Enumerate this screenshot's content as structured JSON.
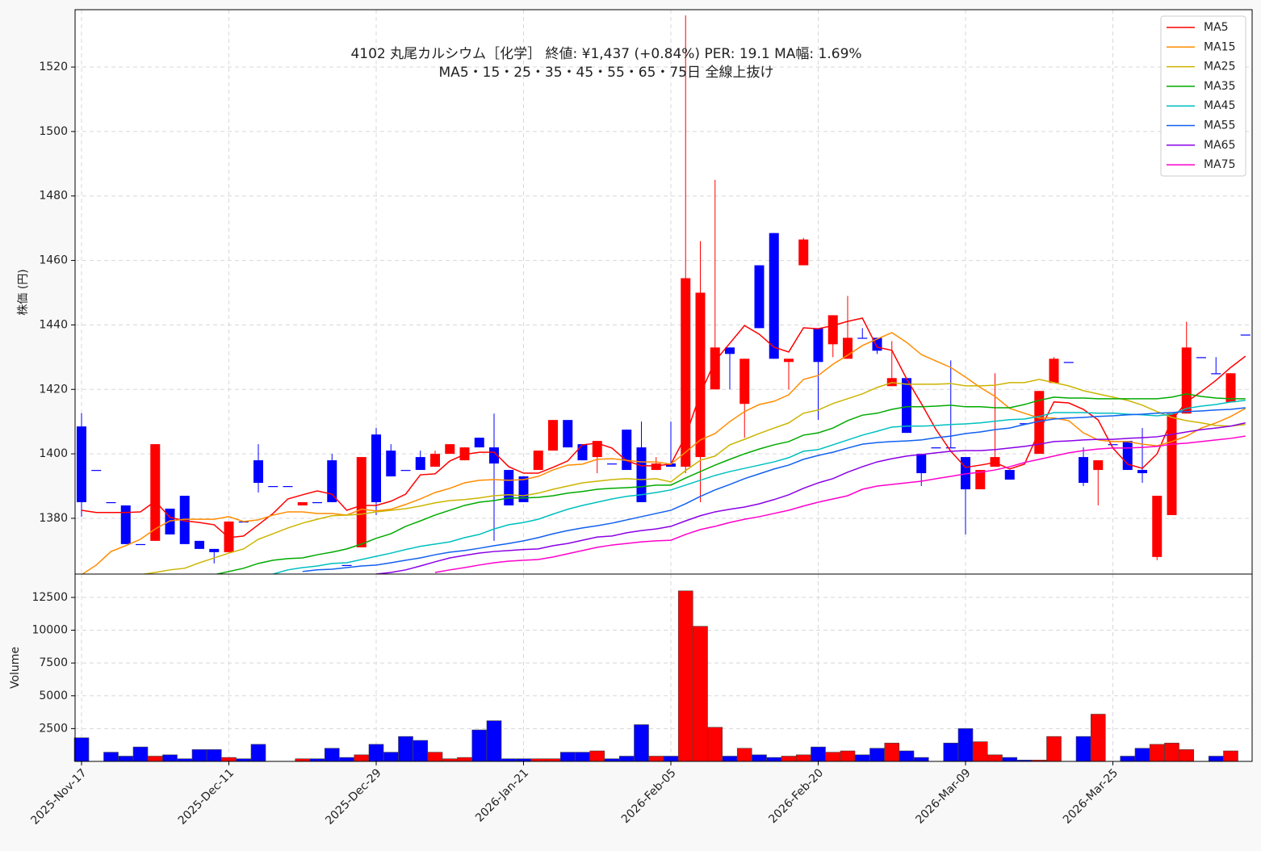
{
  "chart_data": {
    "type": "candlestick",
    "title": "4102  丸尾カルシウム［化学］ 終値: ¥1,437 (+0.84%)   PER: 19.1  MA幅: 1.69%",
    "subtitle": "MA5・15・25・35・45・55・65・75日 全線上抜け",
    "ylabel": "株価 (円)",
    "categories": [
      "2025-Nov-17",
      null,
      null,
      null,
      null,
      null,
      null,
      null,
      null,
      null,
      "2025-Dec-11",
      null,
      null,
      null,
      null,
      null,
      null,
      null,
      null,
      null,
      "2025-Dec-29",
      null,
      null,
      null,
      null,
      null,
      null,
      null,
      null,
      null,
      "2026-Jan-21",
      null,
      null,
      null,
      null,
      null,
      null,
      null,
      null,
      null,
      "2026-Feb-05",
      null,
      null,
      null,
      null,
      null,
      null,
      null,
      null,
      null,
      "2026-Feb-20",
      null,
      null,
      null,
      null,
      null,
      null,
      null,
      null,
      null,
      "2026-Mar-09",
      null,
      null,
      null,
      null,
      null,
      null,
      null,
      null,
      null,
      "2026-Mar-25",
      null,
      null,
      null,
      null,
      null,
      null,
      null,
      null,
      null
    ],
    "open": [
      1408.5,
      1395,
      1385,
      1384,
      1372,
      1373,
      1383,
      1387,
      1373,
      1370.5,
      1369.5,
      1379,
      1398,
      1390,
      1390,
      1384,
      1385,
      1398,
      1365.5,
      1371,
      1406,
      1401,
      1395,
      1399,
      1396,
      1400,
      1398,
      1405,
      1402,
      1395,
      1393,
      1395,
      1401,
      1410.5,
      1403,
      1399,
      1397,
      1407.5,
      1402,
      1395,
      1397,
      1396,
      1399,
      1420,
      1433,
      1415.5,
      1458.5,
      1468.5,
      1428.5,
      1458.5,
      1439,
      1434,
      1429.5,
      1436,
      1436,
      1421,
      1423.5,
      1400,
      1402,
      1402,
      1399,
      1389,
      1396,
      1395,
      1409.5,
      1400,
      1422,
      1428.5,
      1399,
      1395,
      1403,
      1404,
      1395,
      1368,
      1381,
      1412.5,
      1430,
      1425,
      1416,
      1437
    ],
    "high": [
      1412.6,
      1395,
      1385,
      1384,
      1372,
      1403,
      1383,
      1387,
      1373,
      1370.5,
      1379,
      1379,
      1403,
      1390,
      1390,
      1385,
      1385,
      1400,
      1365.5,
      1399,
      1408,
      1403,
      1395,
      1401,
      1401,
      1403,
      1402,
      1405,
      1412.5,
      1395,
      1393,
      1401,
      1410.5,
      1410.5,
      1403,
      1404,
      1397,
      1407.5,
      1410,
      1399,
      1410,
      1536,
      1466,
      1485,
      1433,
      1429.5,
      1458.5,
      1468.5,
      1429.5,
      1467,
      1439,
      1443,
      1449,
      1439,
      1436,
      1435,
      1423.5,
      1400,
      1402,
      1429,
      1399,
      1395,
      1425,
      1395,
      1409.5,
      1419.5,
      1430,
      1428.5,
      1402,
      1398,
      1403,
      1404,
      1408,
      1387,
      1412.5,
      1441,
      1430,
      1430,
      1425,
      1437
    ],
    "low": [
      1380.5,
      1395,
      1385,
      1372,
      1372,
      1373,
      1375,
      1372,
      1370.5,
      1366,
      1369.5,
      1379,
      1388,
      1390,
      1390,
      1384,
      1385,
      1385,
      1365.5,
      1371,
      1381,
      1393,
      1395,
      1395,
      1396,
      1400,
      1398,
      1402,
      1373,
      1384,
      1385,
      1395,
      1401,
      1402,
      1398,
      1394,
      1397,
      1395,
      1385,
      1395,
      1396,
      1394,
      1385,
      1420,
      1420,
      1405,
      1439,
      1429.5,
      1420,
      1458.5,
      1410.5,
      1430,
      1429.5,
      1436,
      1431,
      1421,
      1406.5,
      1390,
      1402,
      1402,
      1375,
      1389,
      1396,
      1392,
      1409.5,
      1400,
      1422,
      1428.5,
      1390,
      1384,
      1403,
      1395,
      1391,
      1367,
      1381,
      1412.5,
      1430,
      1425,
      1416,
      1437
    ],
    "close": [
      1385,
      1395,
      1385,
      1372,
      1372,
      1403,
      1375,
      1372,
      1370.5,
      1369.5,
      1379,
      1379,
      1391,
      1390,
      1390,
      1385,
      1385,
      1385,
      1365.5,
      1399,
      1385,
      1393,
      1395,
      1395,
      1400,
      1403,
      1402,
      1402,
      1397,
      1384,
      1385,
      1401,
      1410.5,
      1402,
      1398,
      1404,
      1397,
      1395,
      1385,
      1397,
      1396,
      1454.5,
      1450,
      1433,
      1431,
      1429.5,
      1439,
      1429.5,
      1429.5,
      1466.5,
      1428.5,
      1443,
      1436,
      1436,
      1432,
      1423.5,
      1406.5,
      1394,
      1402,
      1402,
      1389,
      1395,
      1399,
      1392,
      1409.5,
      1419.5,
      1429.5,
      1428.5,
      1391,
      1398,
      1403,
      1395,
      1394,
      1387,
      1412.5,
      1433,
      1430,
      1425,
      1425,
      1437
    ],
    "up_color": "#ff0000",
    "down_color": "#0000ff",
    "ylim": [
      1362.7,
      1537.8
    ],
    "yticks": [
      1380,
      1400,
      1420,
      1440,
      1460,
      1480,
      1500,
      1520
    ],
    "grid": true,
    "legend": "upper right",
    "series": [
      {
        "name": "MA5",
        "color": "#ff0000",
        "values": [
          1382.5,
          1381.8,
          1381.8,
          1381.8,
          1382,
          1385.3,
          1380.3,
          1379.2,
          1378.7,
          1378,
          1374,
          1374.5,
          1378,
          1381.5,
          1386,
          1387.3,
          1388.5,
          1387.5,
          1382.5,
          1384,
          1384,
          1385.3,
          1387.5,
          1393.5,
          1393.8,
          1397.8,
          1399.8,
          1400.5,
          1400.5,
          1396,
          1394,
          1394,
          1395.8,
          1397.8,
          1402.8,
          1403.3,
          1401.8,
          1397.8,
          1396.3,
          1396.3,
          1396.8,
          1405.5,
          1418.6,
          1428.8,
          1434.3,
          1439.8,
          1437.1,
          1433.1,
          1431.6,
          1439.1,
          1438.8,
          1439.8,
          1441.1,
          1442.1,
          1433.1,
          1432.1,
          1423.3,
          1415.6,
          1407.5,
          1400.8,
          1395.8,
          1396.5,
          1397.3,
          1395.3,
          1396.8,
          1407,
          1416.1,
          1415.8,
          1413.8,
          1410.5,
          1401.8,
          1396.8,
          1395.5,
          1400,
          1410.5,
          1416.1,
          1419.3,
          1422.8,
          1426.8,
          1430.3
        ]
      },
      {
        "name": "MA15",
        "color": "#ff8c00",
        "values": [
          1362.5,
          1365.5,
          1369.7,
          1371.5,
          1373.5,
          1376.7,
          1379.2,
          1379.7,
          1379.7,
          1379.7,
          1380.5,
          1379,
          1379.5,
          1381,
          1382,
          1382,
          1381.5,
          1381.5,
          1381,
          1382.8,
          1382.3,
          1382.8,
          1384.3,
          1386,
          1388,
          1389.3,
          1391,
          1391.8,
          1392,
          1391.8,
          1392,
          1393,
          1395,
          1396.5,
          1396.8,
          1398.3,
          1398.5,
          1398,
          1397.5,
          1397.5,
          1396.8,
          1400.5,
          1404.3,
          1406.3,
          1410,
          1413.1,
          1415.3,
          1416.3,
          1418.3,
          1423.1,
          1424.3,
          1427.8,
          1430.6,
          1433.6,
          1435.6,
          1437.6,
          1434.6,
          1430.8,
          1428.8,
          1426.8,
          1423.8,
          1420.6,
          1417.8,
          1414.1,
          1412.6,
          1411.1,
          1411.1,
          1410.3,
          1406.5,
          1404.3,
          1403.8,
          1403.8,
          1403,
          1402.5,
          1403.8,
          1405.5,
          1408,
          1409.6,
          1411.6,
          1414.1
        ]
      },
      {
        "name": "MA25",
        "color": "#ccb400",
        "values": [
          null,
          null,
          null,
          null,
          1362.5,
          1363.2,
          1364,
          1364.5,
          1366.2,
          1367.7,
          1369.2,
          1370.5,
          1373.5,
          1375.2,
          1377,
          1378.5,
          1379.7,
          1380.8,
          1381,
          1381.3,
          1382,
          1382.5,
          1383,
          1383.8,
          1384.8,
          1385.5,
          1385.8,
          1386.3,
          1387,
          1387.3,
          1387,
          1387.8,
          1389,
          1390,
          1391,
          1391.5,
          1392,
          1392.3,
          1392,
          1392.3,
          1391.3,
          1394.8,
          1398,
          1399.3,
          1402.8,
          1404.5,
          1406.3,
          1408,
          1409.6,
          1412.6,
          1413.6,
          1415.6,
          1417.1,
          1418.6,
          1420.6,
          1422.1,
          1421.6,
          1421.6,
          1421.6,
          1421.8,
          1421.1,
          1421.1,
          1421.3,
          1422.1,
          1422.1,
          1423.1,
          1422.1,
          1421.1,
          1419.6,
          1418.6,
          1417.6,
          1416.6,
          1415.1,
          1413.1,
          1411.3,
          1410.3,
          1409.6,
          1408.8,
          1408.6,
          1409.1
        ]
      },
      {
        "name": "MA35",
        "color": "#00aa00",
        "values": [
          null,
          null,
          null,
          null,
          null,
          null,
          null,
          null,
          null,
          1362.5,
          1363.5,
          1364.5,
          1366,
          1367,
          1367.5,
          1367.7,
          1368.7,
          1369.5,
          1370.5,
          1372,
          1373.8,
          1375.2,
          1377.5,
          1379.2,
          1381,
          1382.5,
          1384,
          1385,
          1385.5,
          1386.3,
          1386.3,
          1386.5,
          1387,
          1387.8,
          1388.3,
          1389,
          1389.3,
          1389.5,
          1389.8,
          1390.3,
          1390.3,
          1392.5,
          1394.5,
          1396.5,
          1398.3,
          1400,
          1401.5,
          1402.8,
          1403.8,
          1405.8,
          1406.5,
          1408,
          1410.3,
          1412,
          1412.6,
          1413.8,
          1414.6,
          1414.6,
          1414.8,
          1415.1,
          1414.6,
          1414.6,
          1414.3,
          1414.3,
          1415.3,
          1416.6,
          1417.6,
          1417.3,
          1417.3,
          1417.1,
          1417.1,
          1417.1,
          1417.1,
          1417.1,
          1417.6,
          1418.6,
          1417.8,
          1417.3,
          1417.1,
          1417.1
        ]
      },
      {
        "name": "MA45",
        "color": "#00bfbf",
        "values": [
          null,
          null,
          null,
          null,
          null,
          null,
          null,
          null,
          null,
          null,
          null,
          null,
          null,
          1362.7,
          1364,
          1364.7,
          1365.2,
          1366,
          1366.2,
          1367.2,
          1368.2,
          1369.2,
          1370.3,
          1371.3,
          1372,
          1372.7,
          1374,
          1375,
          1376.7,
          1378,
          1378.7,
          1379.7,
          1381.3,
          1382.8,
          1384,
          1385,
          1386,
          1386.8,
          1387.3,
          1388,
          1388.8,
          1390.3,
          1391.8,
          1393.3,
          1394.5,
          1395.5,
          1396.5,
          1397.5,
          1398.8,
          1400.8,
          1401.3,
          1402.8,
          1404.3,
          1405.8,
          1407,
          1408.3,
          1408.6,
          1408.6,
          1408.8,
          1409.1,
          1409.3,
          1409.6,
          1410.1,
          1410.6,
          1410.8,
          1411.6,
          1412.8,
          1412.8,
          1412.8,
          1412.6,
          1412.6,
          1412.3,
          1412.1,
          1411.8,
          1412.3,
          1414.1,
          1414.8,
          1415.3,
          1416.1,
          1416.6
        ]
      },
      {
        "name": "MA55",
        "color": "#1060f0",
        "values": [
          null,
          null,
          null,
          null,
          null,
          null,
          null,
          null,
          null,
          null,
          null,
          null,
          null,
          null,
          null,
          1363.5,
          1364,
          1364.2,
          1364.7,
          1365.2,
          1365.5,
          1366.2,
          1367,
          1367.7,
          1368.7,
          1369.5,
          1370,
          1370.7,
          1371.5,
          1372.2,
          1373,
          1374,
          1375.2,
          1376.2,
          1377,
          1377.7,
          1378.5,
          1379.5,
          1380.5,
          1381.5,
          1382.5,
          1384.5,
          1386.8,
          1388.8,
          1390.5,
          1392.3,
          1393.8,
          1395.3,
          1396.5,
          1398.3,
          1399.5,
          1400.5,
          1401.8,
          1403,
          1403.5,
          1403.8,
          1404,
          1404.3,
          1405,
          1405.5,
          1406.3,
          1406.8,
          1407.5,
          1408,
          1409.1,
          1410.1,
          1410.8,
          1411.1,
          1411.3,
          1411.6,
          1411.8,
          1412.1,
          1412.3,
          1412.6,
          1412.8,
          1413.1,
          1413.3,
          1413.6,
          1413.8,
          1414.3
        ]
      },
      {
        "name": "MA65",
        "color": "#8a00e6",
        "values": [
          null,
          null,
          null,
          null,
          null,
          null,
          null,
          null,
          null,
          null,
          null,
          null,
          null,
          null,
          null,
          null,
          null,
          null,
          null,
          null,
          1362.7,
          1363.2,
          1364,
          1365.2,
          1366.5,
          1367.7,
          1368.5,
          1369.2,
          1369.7,
          1370,
          1370.3,
          1370.5,
          1371.5,
          1372.2,
          1373.2,
          1374.2,
          1374.5,
          1375.5,
          1376.2,
          1376.7,
          1377.5,
          1379.2,
          1380.8,
          1382,
          1382.8,
          1383.5,
          1384.5,
          1385.8,
          1387.3,
          1389.3,
          1391,
          1392.3,
          1394.3,
          1396,
          1397.5,
          1398.5,
          1399.3,
          1399.8,
          1400.3,
          1400.8,
          1401,
          1401,
          1401.3,
          1401.8,
          1402.3,
          1403,
          1403.8,
          1404,
          1404.3,
          1404.5,
          1404.5,
          1404.8,
          1405,
          1405.3,
          1406,
          1406.8,
          1407.5,
          1408,
          1408.6,
          1409.6
        ]
      },
      {
        "name": "MA75",
        "color": "#ff00cc",
        "values": [
          null,
          null,
          null,
          null,
          null,
          null,
          null,
          null,
          null,
          null,
          null,
          null,
          null,
          null,
          null,
          null,
          null,
          null,
          null,
          null,
          null,
          null,
          null,
          null,
          1363.2,
          1364,
          1364.7,
          1365.5,
          1366.2,
          1366.7,
          1367,
          1367.2,
          1368,
          1369,
          1370,
          1371,
          1371.7,
          1372.2,
          1372.7,
          1373,
          1373.2,
          1375,
          1376.5,
          1377.5,
          1378.7,
          1379.7,
          1380.5,
          1381.5,
          1382.5,
          1383.8,
          1385,
          1386,
          1387,
          1389,
          1390,
          1390.5,
          1391,
          1391.5,
          1392.3,
          1393,
          1393.8,
          1394.3,
          1395,
          1396,
          1397.3,
          1398.3,
          1399.3,
          1400.3,
          1401,
          1401.5,
          1401.8,
          1401.8,
          1402,
          1402.3,
          1403,
          1403.3,
          1403.8,
          1404.3,
          1404.8,
          1405.5
        ]
      }
    ],
    "volume_ylabel": "Volume",
    "volume": [
      1800,
      0,
      700,
      400,
      1100,
      400,
      500,
      200,
      900,
      900,
      300,
      200,
      1300,
      0,
      0,
      200,
      200,
      1000,
      300,
      500,
      1300,
      700,
      1900,
      1600,
      700,
      200,
      300,
      2400,
      3100,
      200,
      200,
      200,
      200,
      700,
      700,
      800,
      200,
      400,
      2800,
      400,
      400,
      13000,
      10300,
      2600,
      400,
      1000,
      500,
      300,
      400,
      500,
      1100,
      700,
      800,
      500,
      1000,
      1400,
      800,
      300,
      0,
      1400,
      2500,
      1500,
      500,
      300,
      100,
      100,
      1900,
      0,
      1900,
      3600,
      0,
      400,
      1000,
      1300,
      1400,
      900,
      0,
      400,
      800,
      0
    ],
    "volume_ylim": [
      0,
      14280
    ],
    "volume_yticks": [
      2500,
      5000,
      7500,
      10000,
      12500
    ]
  }
}
